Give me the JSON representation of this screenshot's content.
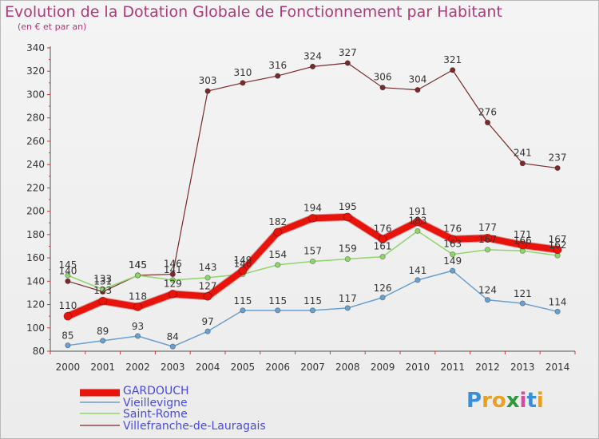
{
  "title": "Evolution de la Dotation Globale de Fonctionnement par Habitant",
  "subtitle": "(en € et par an)",
  "logo": {
    "letters": [
      {
        "ch": "P",
        "color": "#3a8fd6"
      },
      {
        "ch": "r",
        "color": "#e8a020"
      },
      {
        "ch": "o",
        "color": "#e8a020"
      },
      {
        "ch": "x",
        "color": "#2e9a3a"
      },
      {
        "ch": "i",
        "color": "#d44b9a"
      },
      {
        "ch": "t",
        "color": "#3a8fd6"
      },
      {
        "ch": "i",
        "color": "#e8a020"
      }
    ]
  },
  "chart_data": {
    "type": "line",
    "x": [
      "2000",
      "2001",
      "2002",
      "2003",
      "2004",
      "2005",
      "2006",
      "2007",
      "2008",
      "2009",
      "2010",
      "2011",
      "2012",
      "2013",
      "2014"
    ],
    "ylim": [
      80,
      340
    ],
    "yticks": [
      80,
      100,
      120,
      140,
      160,
      180,
      200,
      220,
      240,
      260,
      280,
      300,
      320,
      340
    ],
    "grid": false,
    "legend_position": "bottom-left",
    "series": [
      {
        "name": "GARDOUCH",
        "color": "#e8140c",
        "labelColor": "#333333",
        "width": 8,
        "values": [
          110,
          123,
          118,
          129,
          127,
          149,
          182,
          194,
          195,
          176,
          191,
          176,
          177,
          171,
          167
        ]
      },
      {
        "name": "Vieillevigne",
        "color": "#6aa0cf",
        "labelColor": "#333333",
        "width": 1.5,
        "values": [
          85,
          89,
          93,
          84,
          97,
          115,
          115,
          115,
          117,
          126,
          141,
          149,
          124,
          121,
          114
        ]
      },
      {
        "name": "Saint-Rome",
        "color": "#8ed66a",
        "labelColor": "#333333",
        "width": 1.5,
        "values": [
          145,
          133,
          145,
          141,
          143,
          146,
          154,
          157,
          159,
          161,
          183,
          163,
          167,
          166,
          162
        ]
      },
      {
        "name": "Villefranche-de-Lauragais",
        "color": "#7a2a2a",
        "labelColor": "#333333",
        "width": 1.2,
        "values": [
          140,
          131,
          145,
          146,
          303,
          310,
          316,
          324,
          327,
          306,
          304,
          321,
          276,
          241,
          237
        ]
      }
    ]
  },
  "legend": {
    "labels": [
      "GARDOUCH",
      "Vieillevigne",
      "Saint-Rome",
      "Villefranche-de-Lauragais"
    ],
    "text_color": "#4a4ae0"
  }
}
